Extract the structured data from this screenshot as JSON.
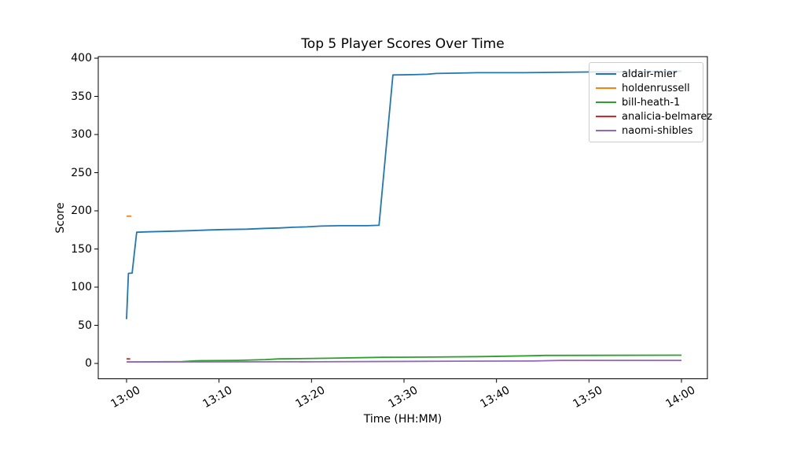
{
  "chart_data": {
    "type": "line",
    "title": "Top 5 Player Scores Over Time",
    "xlabel": "Time (HH:MM)",
    "ylabel": "Score",
    "x_unit": "minutes after 13:00",
    "xlim_minutes": [
      -3.1,
      62.8
    ],
    "ylim": [
      -19.6,
      402
    ],
    "grid": false,
    "legend_position": "upper right",
    "x_ticks": {
      "minutes": [
        0,
        10,
        20,
        30,
        40,
        50,
        60
      ],
      "labels": [
        "13:00",
        "13:10",
        "13:20",
        "13:30",
        "13:40",
        "13:50",
        "14:00"
      ]
    },
    "y_ticks": [
      0,
      50,
      100,
      150,
      200,
      250,
      300,
      350,
      400
    ],
    "series": [
      {
        "name": "aldair-mier",
        "color": "#1f77b4",
        "points": [
          [
            0,
            58
          ],
          [
            0.2,
            118
          ],
          [
            0.6,
            118.5
          ],
          [
            1.1,
            172
          ],
          [
            2.3,
            172.5
          ],
          [
            4,
            173
          ],
          [
            7,
            174
          ],
          [
            9,
            175
          ],
          [
            10.5,
            175.5
          ],
          [
            13,
            176
          ],
          [
            15,
            177
          ],
          [
            16.5,
            177.5
          ],
          [
            18,
            178.5
          ],
          [
            19.5,
            179
          ],
          [
            21,
            180
          ],
          [
            23,
            180.5
          ],
          [
            26,
            180.5
          ],
          [
            27.3,
            181
          ],
          [
            28.8,
            378
          ],
          [
            31,
            378.5
          ],
          [
            32.5,
            379
          ],
          [
            33.5,
            380
          ],
          [
            36,
            380.5
          ],
          [
            38,
            381
          ],
          [
            43,
            381
          ],
          [
            47,
            381.5
          ],
          [
            50,
            382
          ],
          [
            53,
            382
          ],
          [
            56,
            382.5
          ],
          [
            60,
            383
          ]
        ]
      },
      {
        "name": "holdenrussell",
        "color": "#ff7f0e",
        "points": [
          [
            0,
            193
          ],
          [
            0.5,
            193
          ]
        ]
      },
      {
        "name": "bill-heath-1",
        "color": "#2ca02c",
        "points": [
          [
            0,
            2
          ],
          [
            6,
            2.5
          ],
          [
            7.5,
            3.5
          ],
          [
            12,
            4
          ],
          [
            15,
            5
          ],
          [
            16.5,
            6
          ],
          [
            21.8,
            6.8
          ],
          [
            27.7,
            8
          ],
          [
            33,
            8.3
          ],
          [
            38.4,
            9
          ],
          [
            43.5,
            10
          ],
          [
            45.2,
            10.5
          ],
          [
            60,
            10.8
          ]
        ]
      },
      {
        "name": "analicia-belmarez",
        "color": "#d62728",
        "points": [
          [
            0,
            6
          ],
          [
            0.4,
            6
          ]
        ]
      },
      {
        "name": "naomi-shibles",
        "color": "#9467bd",
        "points": [
          [
            0,
            2
          ],
          [
            20,
            2.2
          ],
          [
            35.9,
            3
          ],
          [
            44,
            3.2
          ],
          [
            47,
            4
          ],
          [
            60,
            4
          ]
        ]
      }
    ]
  }
}
